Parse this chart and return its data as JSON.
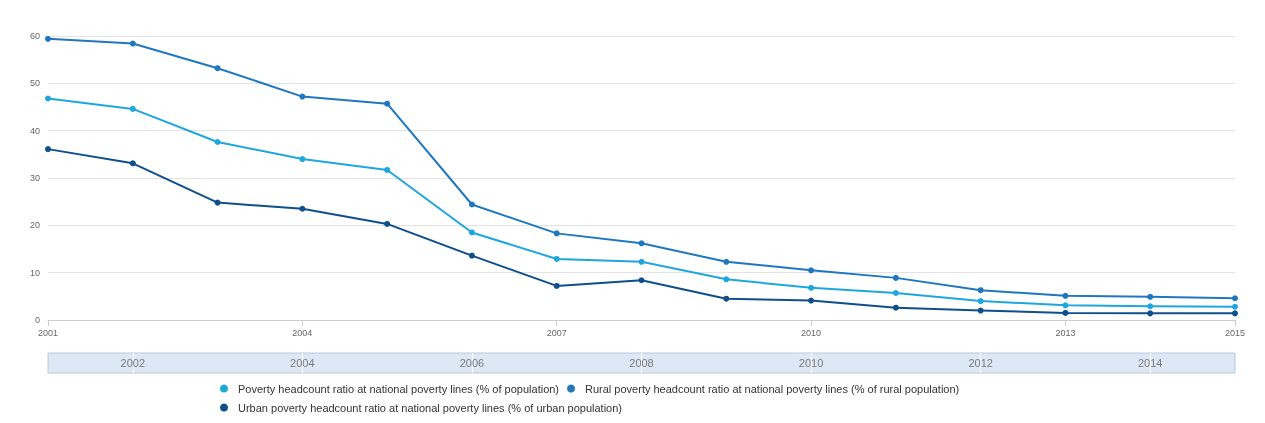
{
  "chart_data": {
    "type": "line",
    "x": [
      2001,
      2002,
      2003,
      2004,
      2005,
      2006,
      2007,
      2008,
      2009,
      2010,
      2011,
      2012,
      2013,
      2014,
      2015
    ],
    "series": [
      {
        "name": "Poverty headcount ratio at national poverty lines (% of population)",
        "color": "#1ea7dd",
        "values": [
          46.8,
          44.6,
          37.6,
          34.0,
          31.7,
          18.5,
          12.9,
          12.3,
          8.6,
          6.8,
          5.7,
          4.0,
          3.1,
          2.9,
          2.8
        ]
      },
      {
        "name": "Rural poverty headcount ratio at national poverty lines (% of rural population)",
        "color": "#1f77c0",
        "values": [
          59.4,
          58.4,
          53.2,
          47.2,
          45.7,
          24.4,
          18.3,
          16.2,
          12.3,
          10.5,
          8.9,
          6.3,
          5.1,
          4.9,
          4.6
        ]
      },
      {
        "name": "Urban poverty headcount ratio at national poverty lines (% of urban population)",
        "color": "#0e4f8c",
        "values": [
          36.1,
          33.1,
          24.8,
          23.5,
          20.3,
          13.6,
          7.2,
          8.4,
          4.5,
          4.1,
          2.6,
          2.0,
          1.5,
          1.4,
          1.4
        ]
      }
    ],
    "xlim": [
      2001,
      2015
    ],
    "xticks": [
      2001,
      2004,
      2007,
      2010,
      2013,
      2015
    ],
    "x2lim": [
      2001,
      2015
    ],
    "x2ticks": [
      2002,
      2004,
      2006,
      2008,
      2010,
      2012,
      2014
    ],
    "ylim": [
      0,
      60
    ],
    "yticks": [
      0,
      10,
      20,
      30,
      40,
      50,
      60
    ],
    "grid": "y",
    "legend": "bottom",
    "marker": "circle",
    "line_style": "solid"
  }
}
